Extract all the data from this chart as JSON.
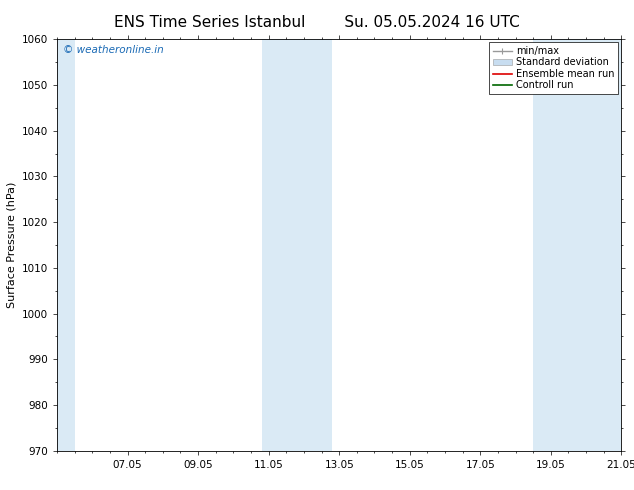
{
  "title_left": "ENS Time Series Istanbul",
  "title_right": "Su. 05.05.2024 16 UTC",
  "ylabel": "Surface Pressure (hPa)",
  "ylim": [
    970,
    1060
  ],
  "yticks": [
    970,
    980,
    990,
    1000,
    1010,
    1020,
    1030,
    1040,
    1050,
    1060
  ],
  "xlim": [
    0,
    16
  ],
  "xtick_labels": [
    "07.05",
    "09.05",
    "11.05",
    "13.05",
    "15.05",
    "17.05",
    "19.05",
    "21.05"
  ],
  "xtick_positions": [
    2,
    4,
    6,
    8,
    10,
    12,
    14,
    16
  ],
  "shaded_bands": [
    {
      "xmin": 0,
      "xmax": 0.5,
      "color": "#daeaf5"
    },
    {
      "xmin": 5.8,
      "xmax": 7.8,
      "color": "#daeaf5"
    },
    {
      "xmin": 13.5,
      "xmax": 16,
      "color": "#daeaf5"
    }
  ],
  "watermark_text": "© weatheronline.in",
  "watermark_color": "#1a6ab5",
  "legend_labels": [
    "min/max",
    "Standard deviation",
    "Ensemble mean run",
    "Controll run"
  ],
  "minmax_color": "#999999",
  "std_color": "#c8ddf0",
  "ens_color": "#dd0000",
  "ctrl_color": "#006600",
  "bg_color": "#ffffff",
  "title_fontsize": 11,
  "label_fontsize": 8,
  "tick_fontsize": 7.5,
  "legend_fontsize": 7,
  "watermark_fontsize": 7.5
}
